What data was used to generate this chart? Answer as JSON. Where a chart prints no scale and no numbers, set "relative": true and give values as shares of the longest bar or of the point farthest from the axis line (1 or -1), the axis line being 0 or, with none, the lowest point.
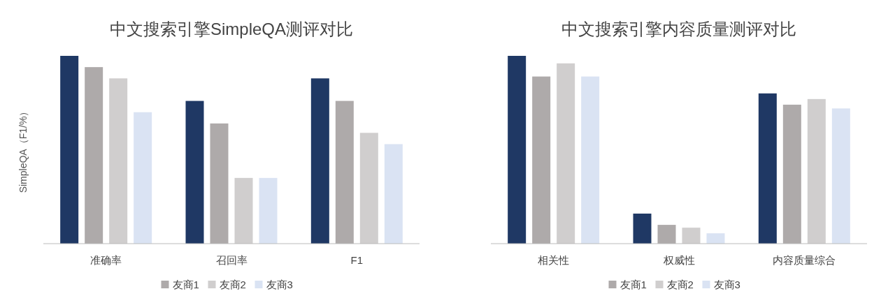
{
  "chart_data": [
    {
      "type": "bar",
      "title": "中文搜索引擎SimpleQA测评对比",
      "ylabel": "SimpleQA（F1/%）",
      "relative": true,
      "legend": "bottom",
      "categories": [
        "准确率",
        "召回率",
        "F1"
      ],
      "series": [
        {
          "color": "#1f3864",
          "values": [
            1,
            0.76,
            0.88
          ]
        },
        {
          "name": "友商1",
          "color": "#aeaaaa",
          "values": [
            0.94,
            0.64,
            0.76
          ]
        },
        {
          "name": "友商2",
          "color": "#d0cece",
          "values": [
            0.88,
            0.35,
            0.59
          ]
        },
        {
          "name": "友商3",
          "color": "#dae3f3",
          "values": [
            0.7,
            0.35,
            0.53
          ]
        }
      ]
    },
    {
      "type": "bar",
      "title": "中文搜索引擎内容质量测评对比",
      "relative": true,
      "legend": "bottom",
      "categories": [
        "相关性",
        "权威性",
        "内容质量综合"
      ],
      "series": [
        {
          "color": "#1f3864",
          "values": [
            1,
            0.16,
            0.8
          ]
        },
        {
          "name": "友商1",
          "color": "#aeaaaa",
          "values": [
            0.89,
            0.1,
            0.74
          ]
        },
        {
          "name": "友商2",
          "color": "#d0cece",
          "values": [
            0.96,
            0.085,
            0.77
          ]
        },
        {
          "name": "友商3",
          "color": "#dae3f3",
          "values": [
            0.89,
            0.055,
            0.72
          ]
        }
      ]
    }
  ]
}
